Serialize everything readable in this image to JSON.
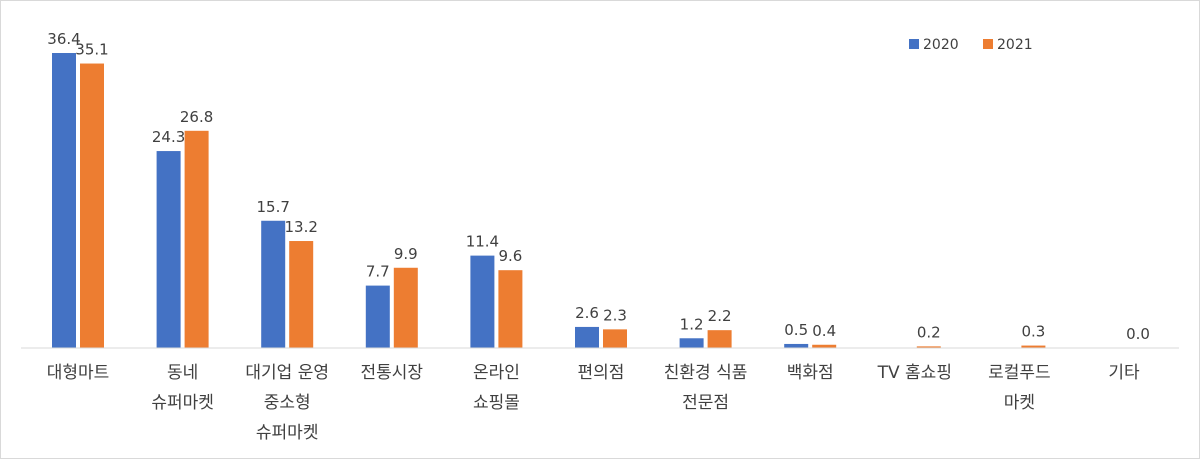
{
  "chart_data": {
    "type": "bar",
    "categories": [
      [
        "대형마트"
      ],
      [
        "동네",
        "슈퍼마켓"
      ],
      [
        "대기업 운영",
        "중소형",
        "슈퍼마켓"
      ],
      [
        "전통시장"
      ],
      [
        "온라인",
        "쇼핑몰"
      ],
      [
        "편의점"
      ],
      [
        "친환경 식품",
        "전문점"
      ],
      [
        "백화점"
      ],
      [
        "TV 홈쇼핑"
      ],
      [
        "로컬푸드",
        "마켓"
      ],
      [
        "기타"
      ]
    ],
    "series": [
      {
        "name": "2020",
        "color": "#4472C4",
        "values": [
          36.4,
          24.3,
          15.7,
          7.7,
          11.4,
          2.6,
          1.2,
          0.5,
          0.0,
          0.0,
          0.0
        ],
        "labels": [
          "36.4",
          "24.3",
          "15.7",
          "7.7",
          "11.4",
          "2.6",
          "1.2",
          "0.5",
          null,
          null,
          null
        ]
      },
      {
        "name": "2021",
        "color": "#ED7D31",
        "values": [
          35.1,
          26.8,
          13.2,
          9.9,
          9.6,
          2.3,
          2.2,
          0.4,
          0.2,
          0.3,
          0.0
        ],
        "labels": [
          "35.1",
          "26.8",
          "13.2",
          "9.9",
          "9.6",
          "2.3",
          "2.2",
          "0.4",
          "0.2",
          "0.3",
          "0.0"
        ]
      }
    ],
    "ylim": [
      0,
      36.4
    ],
    "legend_position": "top-right",
    "grid": false
  }
}
